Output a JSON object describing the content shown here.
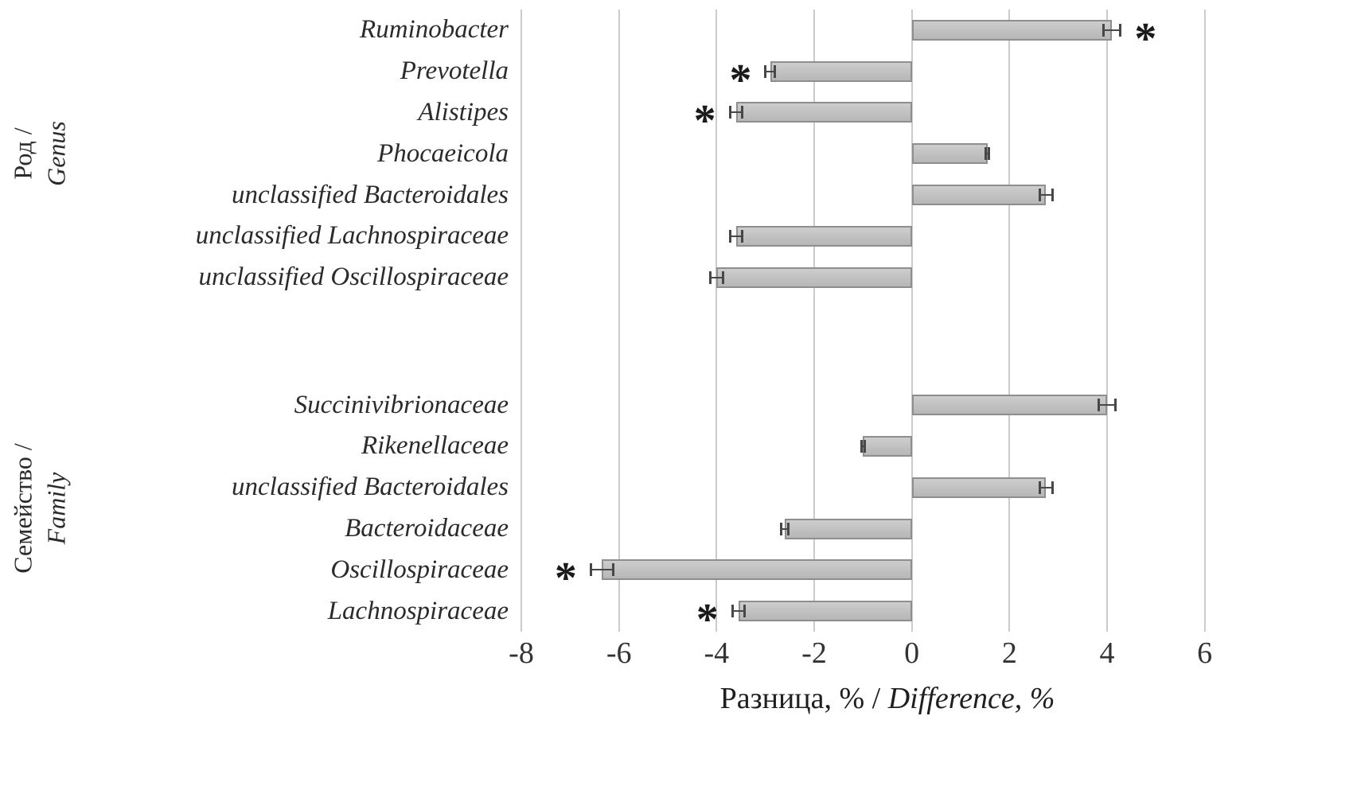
{
  "chart_data": {
    "type": "bar",
    "orientation": "horizontal",
    "star_char": "*",
    "xlabel": {
      "ru": "Разница, %",
      "divider": " / ",
      "en": "Difference, %"
    },
    "axis": {
      "min": -8,
      "max": 7,
      "ticks": [
        -8,
        -6,
        -4,
        -2,
        0,
        2,
        4,
        6
      ],
      "grid": true
    },
    "bar_color": "#c4c4c4",
    "bar_border_color": "#8e8e8e",
    "gridline_color": "#cbcbcb",
    "groups": [
      {
        "label_ru": "Род /",
        "label_en": "Genus",
        "items": [
          {
            "label": "Ruminobacter",
            "value": 4.1,
            "error": 0.2,
            "star": true,
            "star_side": "right"
          },
          {
            "label": "Prevotella",
            "value": -2.9,
            "error": 0.12,
            "star": true,
            "star_side": "left"
          },
          {
            "label": "Alistipes",
            "value": -3.6,
            "error": 0.15,
            "star": true,
            "star_side": "left"
          },
          {
            "label": "Phocaeicola",
            "value": 1.55,
            "error": 0.06,
            "star": false,
            "star_side": ""
          },
          {
            "label": "unclassified Bacteroidales",
            "value": 2.75,
            "error": 0.15,
            "star": false,
            "star_side": ""
          },
          {
            "label": "unclassified Lachnospiraceae",
            "value": -3.6,
            "error": 0.15,
            "star": false,
            "star_side": ""
          },
          {
            "label": "unclassified Oscillospiraceae",
            "value": -4.0,
            "error": 0.15,
            "star": false,
            "star_side": ""
          }
        ]
      },
      {
        "label_ru": "Семейство /",
        "label_en": "Family",
        "items": [
          {
            "label": "Succinivibrionaceae",
            "value": 4.0,
            "error": 0.2,
            "star": false,
            "star_side": ""
          },
          {
            "label": "Rikenellaceae",
            "value": -1.0,
            "error": 0.06,
            "star": false,
            "star_side": ""
          },
          {
            "label": "unclassified Bacteroidales",
            "value": 2.75,
            "error": 0.15,
            "star": false,
            "star_side": ""
          },
          {
            "label": "Bacteroidaceae",
            "value": -2.6,
            "error": 0.1,
            "star": false,
            "star_side": ""
          },
          {
            "label": "Oscillospiraceae",
            "value": -6.35,
            "error": 0.25,
            "star": true,
            "star_side": "left"
          },
          {
            "label": "Lachnospiraceae",
            "value": -3.55,
            "error": 0.15,
            "star": true,
            "star_side": "left"
          }
        ]
      }
    ]
  }
}
